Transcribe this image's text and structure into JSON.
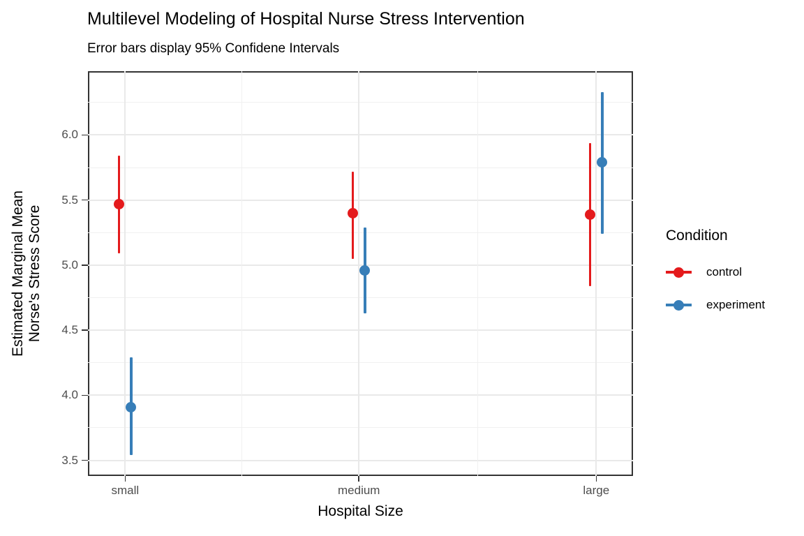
{
  "title": "Multilevel Modeling of Hospital Nurse Stress Intervention",
  "subtitle": "Error bars display 95% Confidene Intervals",
  "chart_data": {
    "type": "pointrange",
    "description": "Dodged point estimates with 95% confidence interval error bars by hospital size and condition",
    "categories": [
      "small",
      "medium",
      "large"
    ],
    "series": [
      {
        "name": "control",
        "color": "#E41A1C",
        "means": [
          5.47,
          5.4,
          5.39
        ],
        "ci_low": [
          5.09,
          5.05,
          4.84
        ],
        "ci_high": [
          5.84,
          5.72,
          5.94
        ]
      },
      {
        "name": "experiment",
        "color": "#377EB8",
        "means": [
          3.91,
          4.96,
          5.79
        ],
        "ci_low": [
          3.54,
          4.63,
          5.24
        ],
        "ci_high": [
          4.29,
          5.29,
          6.33
        ]
      }
    ],
    "xlabel": "Hospital Size",
    "ylabel": "Estimated Marginal Mean Norse's Stress Score",
    "ylabel_lines": [
      "Estimated Marginal Mean",
      "Norse's Stress Score"
    ],
    "ylim": [
      3.38,
      6.49
    ],
    "yticks": [
      3.5,
      4.0,
      4.5,
      5.0,
      5.5,
      6.0
    ],
    "ytick_labels": [
      "3.5",
      "4.0",
      "4.5",
      "5.0",
      "5.5",
      "6.0"
    ],
    "yminor": [
      3.75,
      4.25,
      4.75,
      5.25,
      5.75,
      6.25
    ],
    "legend_title": "Condition",
    "legend_labels": [
      "control",
      "experiment"
    ],
    "legend_position": "right",
    "grid": "major and minor light-gray gridlines on white, dark panel border"
  },
  "colors": {
    "background": "#ffffff",
    "panel_border": "#333333",
    "grid_major": "#e9e9e9",
    "grid_minor": "#f0f0f0",
    "tick_label": "#4d4d4d",
    "control": "#E41A1C",
    "experiment": "#377EB8"
  }
}
